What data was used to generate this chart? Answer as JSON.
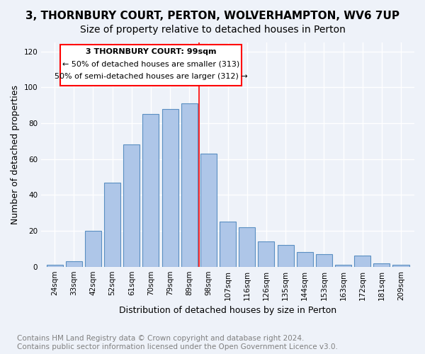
{
  "title": "3, THORNBURY COURT, PERTON, WOLVERHAMPTON, WV6 7UP",
  "subtitle": "Size of property relative to detached houses in Perton",
  "xlabel": "Distribution of detached houses by size in Perton",
  "ylabel": "Number of detached properties",
  "footnote": "Contains HM Land Registry data © Crown copyright and database right 2024.\nContains public sector information licensed under the Open Government Licence v3.0.",
  "bins": [
    "24sqm",
    "33sqm",
    "42sqm",
    "52sqm",
    "61sqm",
    "70sqm",
    "79sqm",
    "89sqm",
    "98sqm",
    "107sqm",
    "116sqm",
    "126sqm",
    "135sqm",
    "144sqm",
    "153sqm",
    "163sqm",
    "172sqm",
    "181sqm",
    "209sqm"
  ],
  "values": [
    1,
    3,
    20,
    47,
    68,
    85,
    88,
    91,
    63,
    25,
    22,
    14,
    12,
    8,
    7,
    1,
    6,
    2,
    1
  ],
  "bar_color": "#aec6e8",
  "bar_edge_color": "#5a8fc2",
  "red_line_bin_index": 8,
  "red_line_label": "3 THORNBURY COURT: 99sqm",
  "annotation_line1": "← 50% of detached houses are smaller (313)",
  "annotation_line2": "50% of semi-detached houses are larger (312) →",
  "ylim": [
    0,
    125
  ],
  "yticks": [
    0,
    20,
    40,
    60,
    80,
    100,
    120
  ],
  "background_color": "#eef2f9",
  "grid_color": "#ffffff",
  "title_fontsize": 11,
  "subtitle_fontsize": 10,
  "xlabel_fontsize": 9,
  "ylabel_fontsize": 9,
  "tick_fontsize": 7.5,
  "annotation_fontsize": 8,
  "footnote_fontsize": 7.5
}
